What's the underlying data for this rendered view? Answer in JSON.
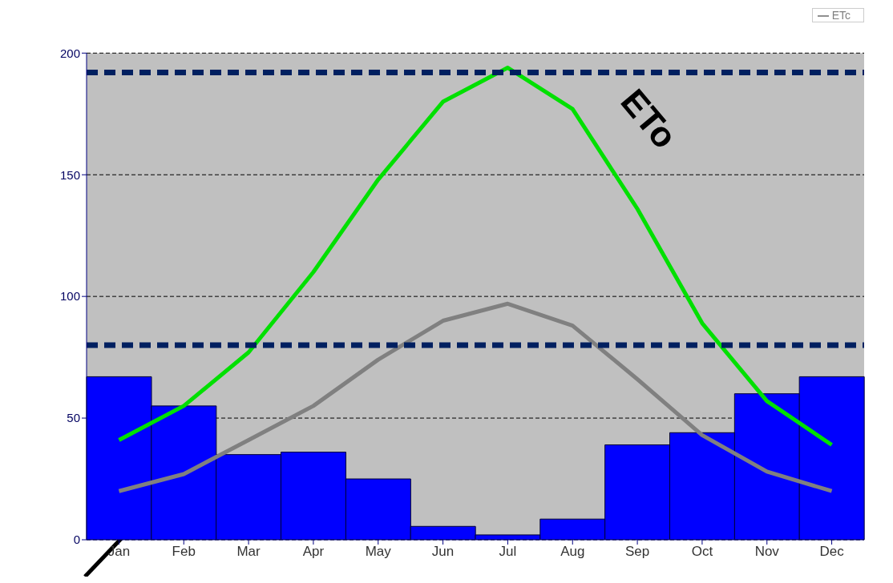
{
  "chart_data": {
    "type": "bar",
    "categories": [
      "Jan",
      "Feb",
      "Mar",
      "Apr",
      "May",
      "Jun",
      "Jul",
      "Aug",
      "Sep",
      "Oct",
      "Nov",
      "Dec"
    ],
    "series": [
      {
        "color": "#0000ff",
        "values": [
          67,
          55,
          35,
          36,
          25,
          5.5,
          2,
          8.5,
          39,
          44,
          60,
          67
        ]
      },
      {
        "type": "line",
        "name": "ETc",
        "color": "#808080",
        "values": [
          20,
          27,
          41,
          55,
          74,
          90,
          97,
          88,
          66,
          43,
          28,
          20
        ]
      },
      {
        "type": "line",
        "color": "#00e000",
        "values": [
          41,
          55,
          77,
          110,
          148,
          180,
          194,
          177,
          136,
          89,
          57,
          39
        ]
      }
    ],
    "ylim": [
      0,
      200
    ],
    "yticks": [
      0,
      50,
      100,
      150,
      200
    ],
    "grid": "y",
    "legend": "top right",
    "marker": "none",
    "ref_lines": [
      {
        "axis": "y",
        "value": 192,
        "color": "#002060",
        "line_style": "dashed"
      },
      {
        "axis": "y",
        "value": 80,
        "color": "#002060",
        "line_style": "dashed"
      }
    ],
    "annotations": [
      "ETo"
    ]
  }
}
